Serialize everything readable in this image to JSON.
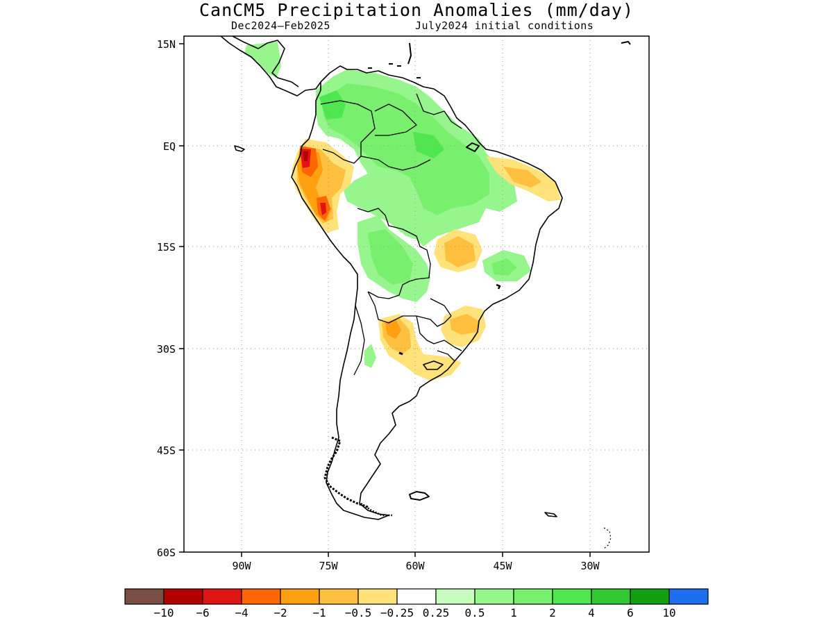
{
  "title": "CanCM5 Precipitation Anomalies (mm/day)",
  "subtitle_left": "Dec2024–Feb2025",
  "subtitle_right": "July2024 initial conditions",
  "map": {
    "lat_range": [
      "60S",
      "15N"
    ],
    "lon_range": [
      "98W",
      "18W"
    ],
    "lat_ticks": [
      "15N",
      "EQ",
      "15S",
      "30S",
      "45S",
      "60S"
    ],
    "lon_ticks": [
      "90W",
      "75W",
      "60W",
      "45W",
      "30W"
    ],
    "grid": "dotted"
  },
  "colorbar": {
    "colors": [
      "#7a4f43",
      "#b20000",
      "#e01414",
      "#ff6600",
      "#ffa010",
      "#ffc040",
      "#ffe27a",
      "#ffffff",
      "#c8ffc0",
      "#96f58c",
      "#78f06e",
      "#50e650",
      "#32c832",
      "#10a010",
      "#1e6ef0"
    ],
    "labels": [
      "−10",
      "−6",
      "−4",
      "−2",
      "−1",
      "−0.5",
      "−0.25",
      "0.25",
      "0.5",
      "1",
      "2",
      "4",
      "6",
      "10"
    ]
  }
}
